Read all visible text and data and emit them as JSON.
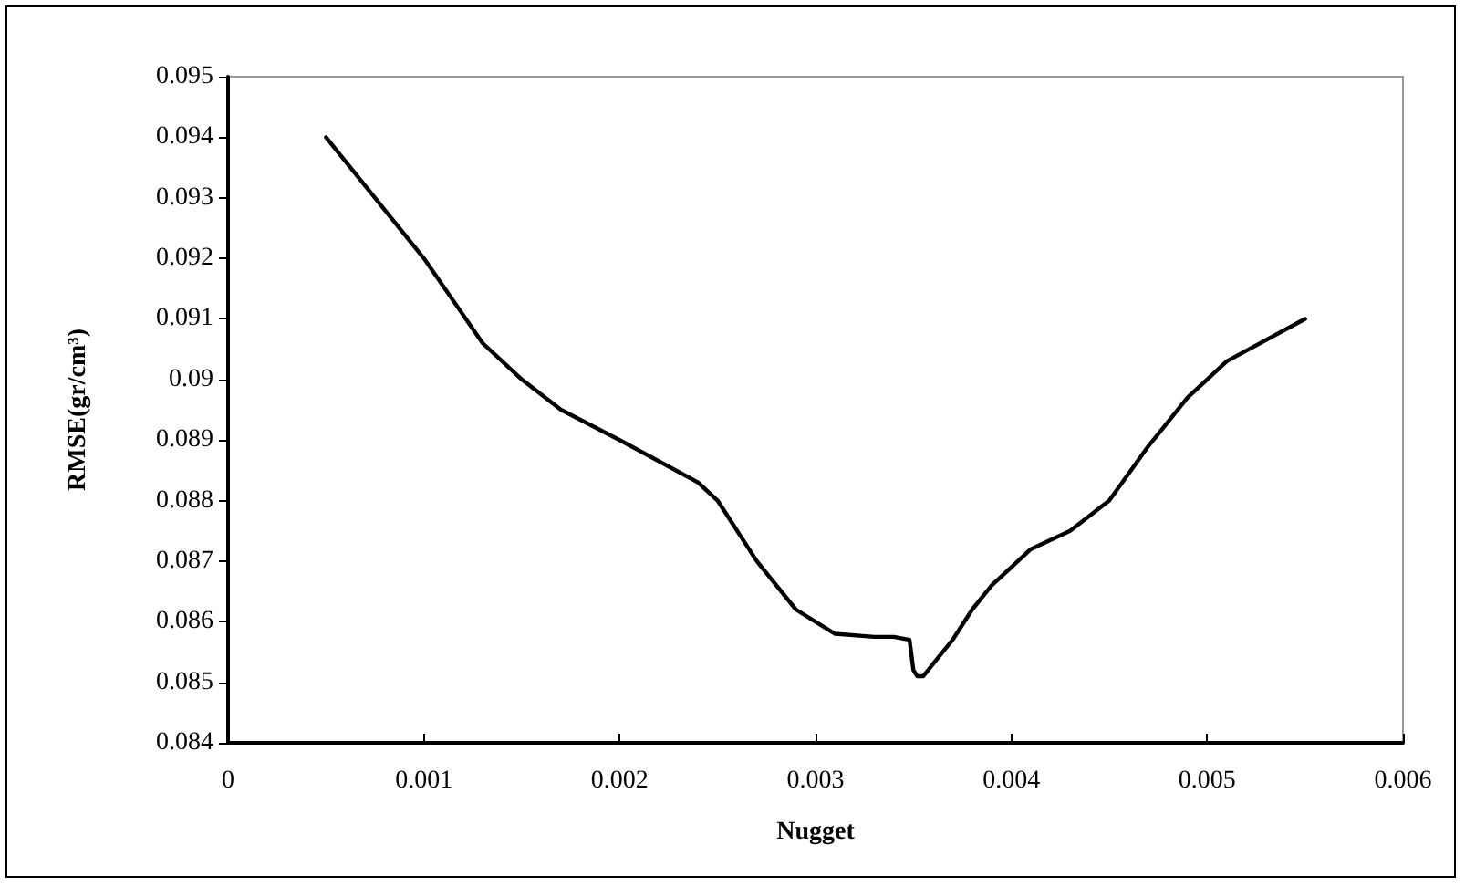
{
  "chart_data": {
    "type": "line",
    "xlabel": "Nugget",
    "ylabel": "RMSE(gr/cm³)",
    "x": [
      0.0005,
      0.001,
      0.0013,
      0.0015,
      0.0017,
      0.002,
      0.0024,
      0.0025,
      0.0027,
      0.0029,
      0.003,
      0.0031,
      0.0033,
      0.0034,
      0.00348,
      0.0035,
      0.00352,
      0.00355,
      0.0036,
      0.0037,
      0.0038,
      0.0039,
      0.004,
      0.0041,
      0.0043,
      0.0045,
      0.0047,
      0.0049,
      0.005,
      0.0051,
      0.0055
    ],
    "series": [
      {
        "color": "#000000",
        "values": [
          0.094,
          0.092,
          0.0906,
          0.09,
          0.0895,
          0.089,
          0.0883,
          0.088,
          0.087,
          0.0862,
          0.086,
          0.0858,
          0.08575,
          0.08575,
          0.0857,
          0.0852,
          0.0851,
          0.0851,
          0.0853,
          0.0857,
          0.0862,
          0.0866,
          0.0869,
          0.0872,
          0.0875,
          0.088,
          0.0889,
          0.0897,
          0.09,
          0.0903,
          0.091
        ]
      }
    ],
    "xlim": [
      0,
      0.006
    ],
    "xticks": [
      0,
      0.001,
      0.002,
      0.003,
      0.004,
      0.005,
      0.006
    ],
    "ylim": [
      0.084,
      0.095
    ],
    "yticks": [
      0.084,
      0.085,
      0.086,
      0.087,
      0.088,
      0.089,
      0.09,
      0.091,
      0.092,
      0.093,
      0.094,
      0.095
    ],
    "grid": false,
    "marker": "none",
    "line_style": "solid"
  }
}
